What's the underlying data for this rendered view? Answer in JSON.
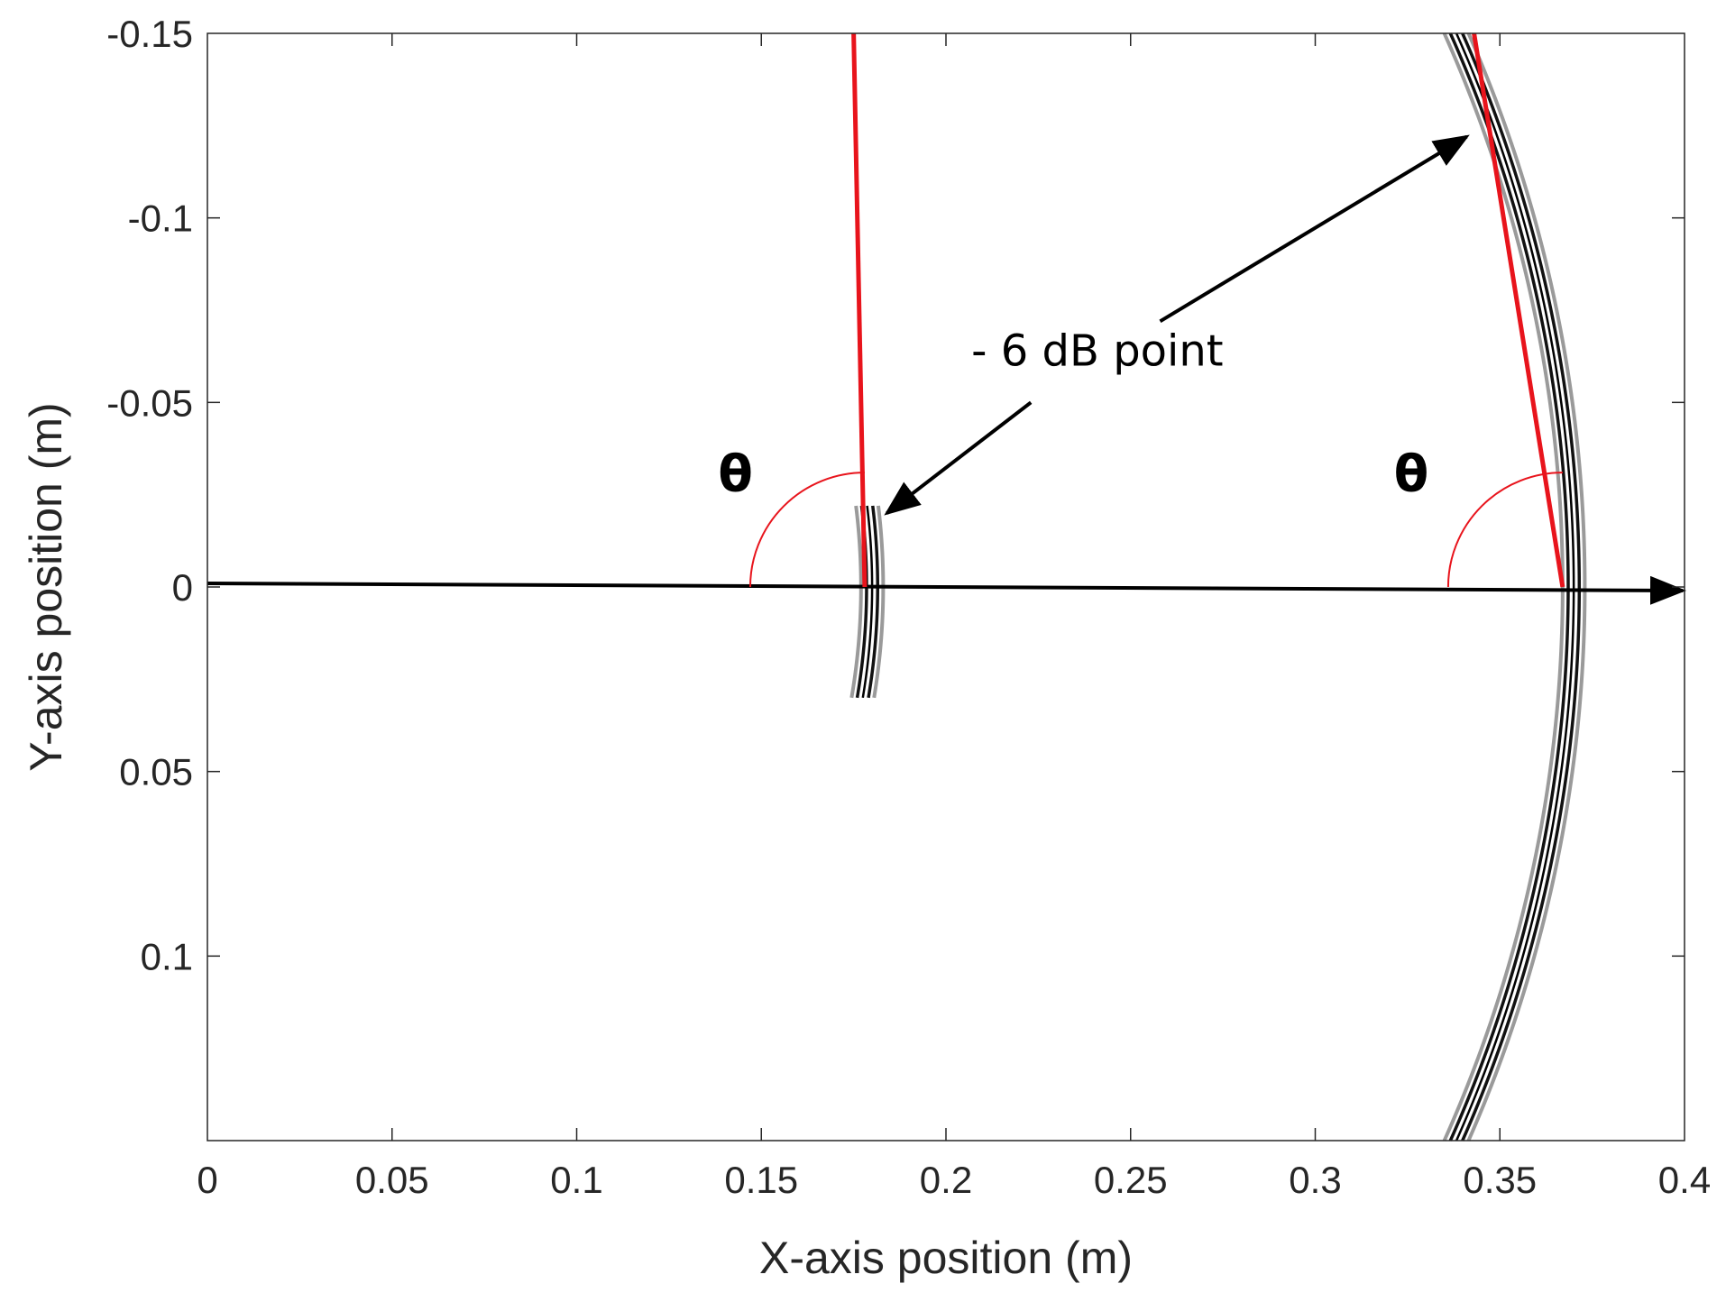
{
  "chart_data": {
    "type": "line",
    "title": "",
    "xlabel": "X-axis position (m)",
    "ylabel": "Y-axis position (m)",
    "xlim": [
      0,
      0.4
    ],
    "ylim": [
      -0.15,
      0.15
    ],
    "y_reversed": true,
    "grid": false,
    "x_ticks": [
      0,
      0.05,
      0.1,
      0.15,
      0.2,
      0.25,
      0.3,
      0.35,
      0.4
    ],
    "x_tick_labels": [
      "0",
      "0.05",
      "0.1",
      "0.15",
      "0.2",
      "0.25",
      "0.3",
      "0.35",
      "0.4"
    ],
    "y_ticks": [
      -0.15,
      -0.1,
      -0.05,
      0,
      0.05,
      0.1
    ],
    "y_tick_labels": [
      "-0.15",
      "-0.1",
      "-0.05",
      "0",
      "0.05",
      "0.1"
    ],
    "colors": {
      "red_line": "#e8141c",
      "wave": "#000000",
      "axis": "#262626"
    },
    "series": [
      {
        "type": "red-line",
        "x": [
          0.175,
          0.178
        ],
        "y": [
          -0.15,
          0.0
        ]
      },
      {
        "type": "red-line",
        "x": [
          0.343,
          0.367
        ],
        "y": [
          -0.15,
          0.0
        ]
      },
      {
        "type": "wavefront-arc",
        "center_x": 0.0,
        "radius": 0.18,
        "y_range": [
          -0.022,
          0.03
        ],
        "rings": [
          -0.003,
          -0.0015,
          0,
          0.0015,
          0.003
        ]
      },
      {
        "type": "wavefront-arc",
        "center_x": 0.0,
        "radius": 0.37,
        "y_range": [
          -0.15,
          0.15
        ],
        "rings": [
          -0.003,
          -0.0015,
          0,
          0.0015,
          0.003
        ]
      },
      {
        "type": "arrow-axis",
        "x": [
          0,
          0.4
        ],
        "y": [
          0.0,
          0.0
        ]
      }
    ],
    "angle_arcs": [
      {
        "center": [
          0.178,
          0.0
        ],
        "radius": 0.031,
        "label": "θ",
        "label_pos": [
          0.143,
          -0.026
        ]
      },
      {
        "center": [
          0.367,
          0.0
        ],
        "radius": 0.031,
        "label": "θ",
        "label_pos": [
          0.326,
          -0.026
        ]
      }
    ],
    "annotations": [
      {
        "text": "- 6 dB point",
        "pos": [
          0.241,
          -0.06
        ],
        "arrows": [
          {
            "from": [
              0.223,
              -0.05
            ],
            "to": [
              0.184,
              -0.02
            ]
          },
          {
            "from": [
              0.258,
              -0.072
            ],
            "to": [
              0.341,
              -0.122
            ]
          }
        ]
      }
    ]
  }
}
